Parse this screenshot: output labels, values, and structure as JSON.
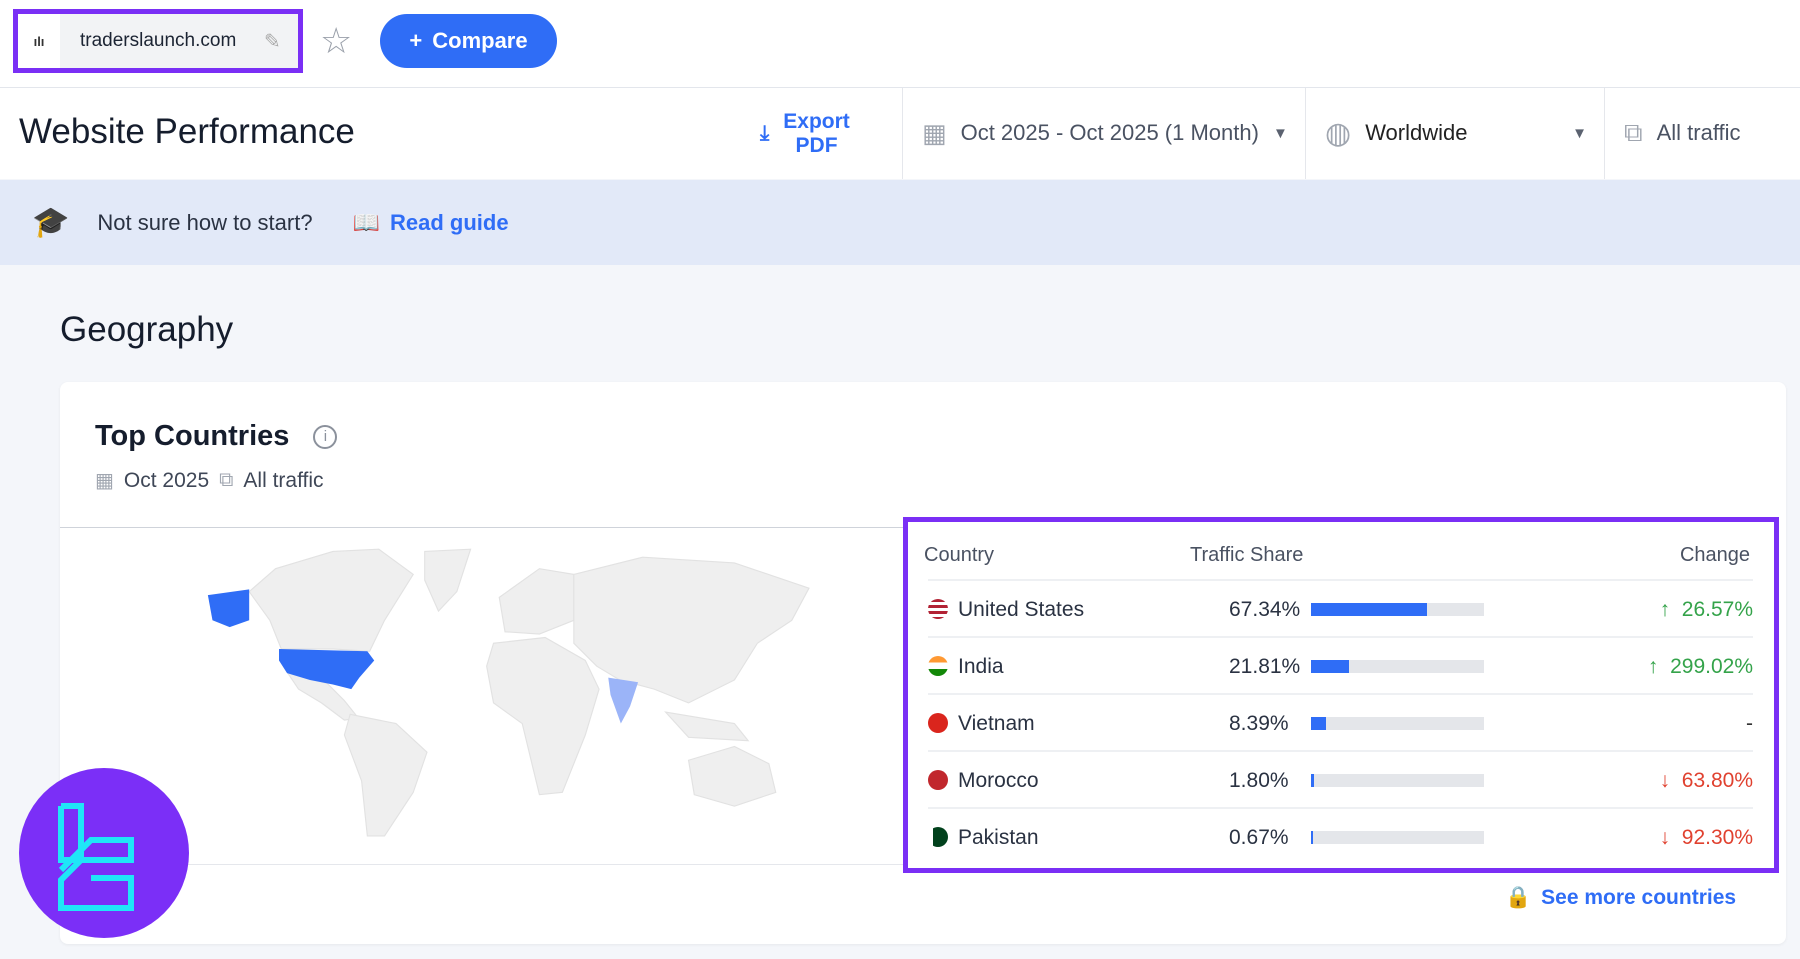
{
  "topbar": {
    "domain": "traderslaunch.com",
    "compare_label": "Compare",
    "favicon": "bar-chart-icon"
  },
  "header": {
    "title": "Website Performance",
    "export_label_line1": "Export",
    "export_label_line2": "PDF",
    "date_range": "Oct 2025 - Oct 2025 (1 Month)",
    "region": "Worldwide",
    "traffic": "All traffic"
  },
  "banner": {
    "text": "Not sure how to start?",
    "link": "Read guide"
  },
  "section": {
    "title": "Geography"
  },
  "card": {
    "title": "Top Countries",
    "period": "Oct 2025",
    "traffic": "All traffic",
    "see_more": "See more countries"
  },
  "table": {
    "headers": {
      "country": "Country",
      "share": "Traffic Share",
      "change": "Change"
    },
    "rows": [
      {
        "country": "United States",
        "share": "67.34%",
        "share_value": 67.34,
        "change": "26.57%",
        "direction": "up",
        "arrow": "↑"
      },
      {
        "country": "India",
        "share": "21.81%",
        "share_value": 21.81,
        "change": "299.02%",
        "direction": "up",
        "arrow": "↑"
      },
      {
        "country": "Vietnam",
        "share": "8.39%",
        "share_value": 8.39,
        "change": "-",
        "direction": "flat",
        "arrow": ""
      },
      {
        "country": "Morocco",
        "share": "1.80%",
        "share_value": 1.8,
        "change": "63.80%",
        "direction": "down",
        "arrow": "↓"
      },
      {
        "country": "Pakistan",
        "share": "0.67%",
        "share_value": 0.67,
        "change": "92.30%",
        "direction": "down",
        "arrow": "↓"
      }
    ]
  },
  "colors": {
    "accent": "#2f6df6",
    "highlight_box": "#7a2ff5",
    "up": "#34a34a",
    "down": "#e0412f",
    "map_primary": "#2f6df6",
    "map_secondary": "#9bb4f8"
  }
}
